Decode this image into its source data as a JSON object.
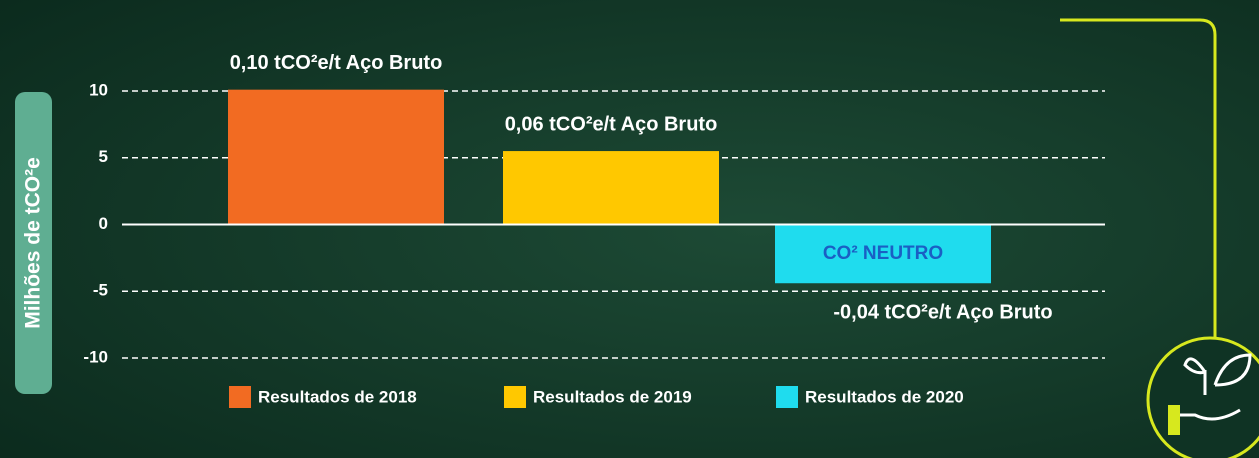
{
  "chart_data": {
    "type": "bar",
    "ylabel": "Milhões de tCO²e",
    "series": [
      {
        "name": "Resultados de 2018",
        "color": "#f26b22",
        "values": [
          10.1
        ],
        "annotation": "0,10 tCO²e/t Aço Bruto"
      },
      {
        "name": "Resultados de 2019",
        "color": "#ffc800",
        "values": [
          5.5
        ],
        "annotation": "0,06 tCO²e/t Aço Bruto"
      },
      {
        "name": "Resultados de 2020",
        "color": "#1fdcee",
        "values": [
          -4.4
        ],
        "annotation": "-0,04 tCO²e/t Aço Bruto",
        "inner_label": "CO² NEUTRO"
      }
    ],
    "ylim": [
      -10,
      10
    ],
    "yticks": [
      -10,
      -5,
      0,
      5,
      10
    ],
    "grid": true
  }
}
